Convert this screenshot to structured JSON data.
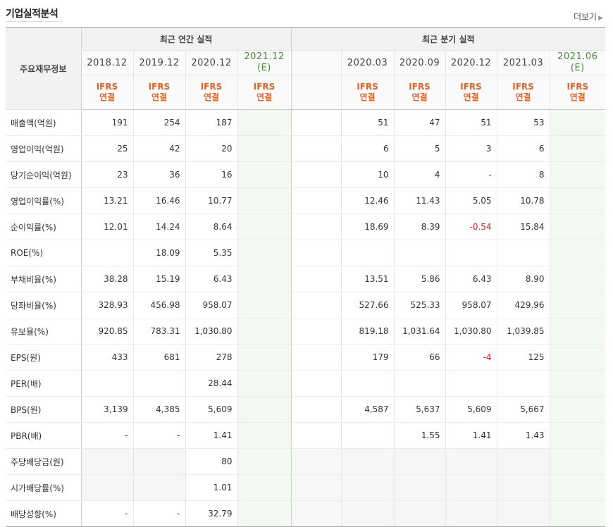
{
  "section_title": "기업실적분석",
  "more_label": "더보기",
  "header": {
    "row_head": "주요재무정보",
    "annual_group": "최근 연간 실적",
    "quarter_group": "최근 분기 실적",
    "annual_periods": [
      "2018.12",
      "2019.12",
      "2020.12",
      "2021.12"
    ],
    "annual_estimate_suffix": "(E)",
    "quarter_periods": [
      "2020.03",
      "2020.09",
      "2020.12",
      "2021.03",
      "2021.06"
    ],
    "quarter_estimate_suffix": "(E)",
    "ifrs": "IFRS",
    "consolidated": "연결"
  },
  "rows": [
    {
      "label": "매출액(억원)",
      "annual": [
        "191",
        "254",
        "187",
        ""
      ],
      "quarter": [
        "51",
        "47",
        "51",
        "53",
        ""
      ]
    },
    {
      "label": "영업이익(억원)",
      "annual": [
        "25",
        "42",
        "20",
        ""
      ],
      "quarter": [
        "6",
        "5",
        "3",
        "6",
        ""
      ]
    },
    {
      "label": "당기순이익(억원)",
      "annual": [
        "23",
        "36",
        "16",
        ""
      ],
      "quarter": [
        "10",
        "4",
        "-",
        "8",
        ""
      ]
    },
    {
      "label": "영업이익률(%)",
      "annual": [
        "13.21",
        "16.46",
        "10.77",
        ""
      ],
      "quarter": [
        "12.46",
        "11.43",
        "5.05",
        "10.78",
        ""
      ]
    },
    {
      "label": "순이익률(%)",
      "annual": [
        "12.01",
        "14.24",
        "8.64",
        ""
      ],
      "quarter": [
        "18.69",
        "8.39",
        "-0.54",
        "15.84",
        ""
      ]
    },
    {
      "label": "ROE(%)",
      "annual": [
        "",
        "18.09",
        "5.35",
        ""
      ],
      "quarter": [
        "",
        "",
        "",
        "",
        ""
      ]
    },
    {
      "label": "부채비율(%)",
      "annual": [
        "38.28",
        "15.19",
        "6.43",
        ""
      ],
      "quarter": [
        "13.51",
        "5.86",
        "6.43",
        "8.90",
        ""
      ]
    },
    {
      "label": "당좌비율(%)",
      "annual": [
        "328.93",
        "456.98",
        "958.07",
        ""
      ],
      "quarter": [
        "527.66",
        "525.33",
        "958.07",
        "429.96",
        ""
      ]
    },
    {
      "label": "유보율(%)",
      "annual": [
        "920.85",
        "783.31",
        "1,030.80",
        ""
      ],
      "quarter": [
        "819.18",
        "1,031.64",
        "1,030.80",
        "1,039.85",
        ""
      ]
    },
    {
      "label": "EPS(원)",
      "annual": [
        "433",
        "681",
        "278",
        ""
      ],
      "quarter": [
        "179",
        "66",
        "-4",
        "125",
        ""
      ]
    },
    {
      "label": "PER(배)",
      "annual": [
        "",
        "",
        "28.44",
        ""
      ],
      "quarter": [
        "",
        "",
        "",
        "",
        ""
      ]
    },
    {
      "label": "BPS(원)",
      "annual": [
        "3,139",
        "4,385",
        "5,609",
        ""
      ],
      "quarter": [
        "4,587",
        "5,637",
        "5,609",
        "5,667",
        ""
      ]
    },
    {
      "label": "PBR(배)",
      "annual": [
        "-",
        "-",
        "1.41",
        ""
      ],
      "quarter": [
        "",
        "1.55",
        "1.41",
        "1.43",
        ""
      ]
    },
    {
      "label": "주당배당금(원)",
      "annual": [
        "",
        "",
        "80",
        ""
      ],
      "quarter": [
        "",
        "",
        "",
        "",
        ""
      ]
    },
    {
      "label": "시가배당률(%)",
      "annual": [
        "",
        "",
        "1.01",
        ""
      ],
      "quarter": [
        "",
        "",
        "",
        "",
        ""
      ]
    },
    {
      "label": "배당성향(%)",
      "annual": [
        "-",
        "-",
        "32.79",
        ""
      ],
      "quarter": [
        "",
        "",
        "",
        "",
        ""
      ]
    }
  ],
  "colors": {
    "ifrs": "#e0622b",
    "estimate_text": "#4a8a3a",
    "negative": "#e02020",
    "estimate_bg": "#f4f8f3"
  }
}
